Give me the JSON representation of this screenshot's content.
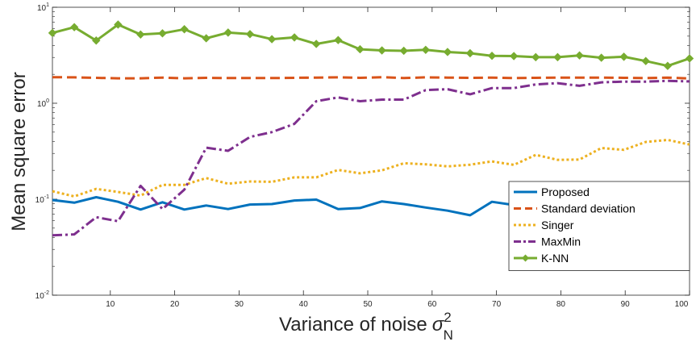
{
  "chart_data": {
    "type": "line",
    "title": "",
    "xlabel": "Variance of noise",
    "xlabel_symbol": "σ",
    "xlabel_sup": "2",
    "xlabel_sub": "N",
    "ylabel": "Mean square error",
    "xlim": [
      1,
      100
    ],
    "ylim": [
      0.01,
      10
    ],
    "yscale": "log",
    "grid": false,
    "legend_position": "inside-right",
    "x_ticks": [
      {
        "value": 10,
        "label": "10"
      },
      {
        "value": 20,
        "label": "20"
      },
      {
        "value": 30,
        "label": "30"
      },
      {
        "value": 40,
        "label": "40"
      },
      {
        "value": 50,
        "label": "50"
      },
      {
        "value": 60,
        "label": "60"
      },
      {
        "value": 70,
        "label": "70"
      },
      {
        "value": 80,
        "label": "80"
      },
      {
        "value": 90,
        "label": "90"
      },
      {
        "value": 100,
        "label": "100"
      }
    ],
    "y_ticks": [
      {
        "value": 0.01,
        "base": "10",
        "exp": "-2"
      },
      {
        "value": 0.1,
        "base": "10",
        "exp": "-1"
      },
      {
        "value": 1,
        "base": "10",
        "exp": "0"
      },
      {
        "value": 10,
        "base": "10",
        "exp": "1"
      }
    ],
    "x": [
      1,
      4.4,
      7.8,
      11.2,
      14.7,
      18.1,
      21.5,
      24.9,
      28.3,
      31.7,
      35.1,
      38.6,
      42,
      45.4,
      48.8,
      52.2,
      55.6,
      59,
      62.4,
      65.9,
      69.3,
      72.7,
      76.1,
      79.5,
      82.9,
      86.3,
      89.8,
      93.2,
      96.6,
      100
    ],
    "series": [
      {
        "name": "Proposed",
        "color": "#0072BD",
        "style": "solid",
        "values": [
          0.098,
          0.092,
          0.105,
          0.094,
          0.078,
          0.093,
          0.078,
          0.086,
          0.079,
          0.088,
          0.089,
          0.097,
          0.099,
          0.079,
          0.081,
          0.095,
          0.089,
          0.082,
          0.076,
          0.068,
          0.094,
          0.087,
          0.082,
          0.079,
          0.077,
          0.085,
          0.089,
          0.093,
          0.086,
          0.08
        ]
      },
      {
        "name": "Standard deviation",
        "color": "#D95319",
        "style": "dashed",
        "values": [
          1.87,
          1.86,
          1.84,
          1.82,
          1.82,
          1.85,
          1.82,
          1.84,
          1.83,
          1.83,
          1.83,
          1.84,
          1.85,
          1.86,
          1.84,
          1.87,
          1.83,
          1.86,
          1.85,
          1.84,
          1.85,
          1.83,
          1.84,
          1.85,
          1.85,
          1.85,
          1.84,
          1.83,
          1.85,
          1.81
        ]
      },
      {
        "name": "Singer",
        "color": "#EDB120",
        "style": "dotted",
        "values": [
          0.121,
          0.107,
          0.128,
          0.119,
          0.109,
          0.141,
          0.141,
          0.166,
          0.145,
          0.153,
          0.152,
          0.169,
          0.169,
          0.202,
          0.186,
          0.2,
          0.237,
          0.231,
          0.22,
          0.229,
          0.248,
          0.228,
          0.29,
          0.257,
          0.259,
          0.342,
          0.327,
          0.395,
          0.415,
          0.371
        ]
      },
      {
        "name": "MaxMin",
        "color": "#7E2F8E",
        "style": "dashdot",
        "values": [
          0.042,
          0.043,
          0.065,
          0.059,
          0.138,
          0.079,
          0.126,
          0.344,
          0.319,
          0.445,
          0.5,
          0.609,
          1.05,
          1.15,
          1.05,
          1.09,
          1.09,
          1.37,
          1.4,
          1.24,
          1.44,
          1.44,
          1.57,
          1.62,
          1.52,
          1.65,
          1.68,
          1.68,
          1.71,
          1.69
        ]
      },
      {
        "name": "K-NN",
        "color": "#77AC30",
        "style": "solid-marker",
        "values": [
          5.4,
          6.2,
          4.5,
          6.6,
          5.2,
          5.35,
          5.9,
          4.75,
          5.45,
          5.25,
          4.65,
          4.85,
          4.15,
          4.55,
          3.65,
          3.55,
          3.52,
          3.6,
          3.42,
          3.32,
          3.12,
          3.1,
          3.02,
          3.02,
          3.15,
          2.98,
          3.05,
          2.75,
          2.45,
          2.93
        ]
      }
    ]
  }
}
